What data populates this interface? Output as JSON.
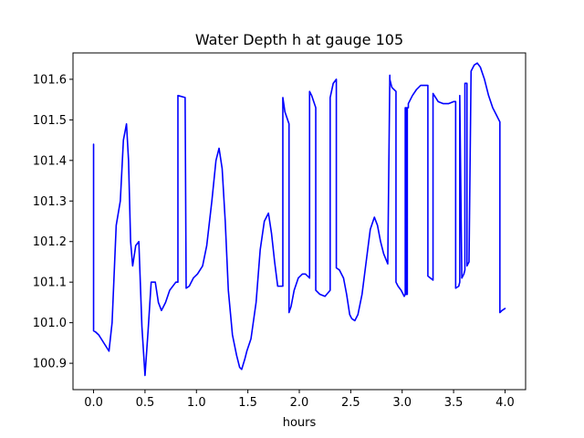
{
  "chart_data": {
    "type": "line",
    "title": "Water Depth h at gauge 105",
    "xlabel": "hours",
    "ylabel": "",
    "xlim": [
      -0.2,
      4.2
    ],
    "ylim": [
      100.835,
      101.665
    ],
    "xticks": [
      0.0,
      0.5,
      1.0,
      1.5,
      2.0,
      2.5,
      3.0,
      3.5,
      4.0
    ],
    "xtick_labels": [
      "0.0",
      "0.5",
      "1.0",
      "1.5",
      "2.0",
      "2.5",
      "3.0",
      "3.5",
      "4.0"
    ],
    "yticks": [
      100.9,
      101.0,
      101.1,
      101.2,
      101.3,
      101.4,
      101.5,
      101.6
    ],
    "ytick_labels": [
      "100.9",
      "101.0",
      "101.1",
      "101.2",
      "101.3",
      "101.4",
      "101.5",
      "101.6"
    ],
    "grid": false,
    "legend": "none",
    "series": [
      {
        "color": "#0000ff",
        "x": [
          0.0,
          0.0,
          0.02,
          0.05,
          0.1,
          0.15,
          0.18,
          0.22,
          0.26,
          0.29,
          0.32,
          0.34,
          0.36,
          0.38,
          0.41,
          0.44,
          0.47,
          0.5,
          0.53,
          0.56,
          0.6,
          0.63,
          0.66,
          0.7,
          0.74,
          0.8,
          0.82,
          0.82,
          0.89,
          0.9,
          0.93,
          0.97,
          1.01,
          1.06,
          1.1,
          1.15,
          1.19,
          1.22,
          1.25,
          1.28,
          1.31,
          1.35,
          1.39,
          1.42,
          1.44,
          1.47,
          1.49,
          1.53,
          1.58,
          1.62,
          1.66,
          1.7,
          1.73,
          1.76,
          1.79,
          1.82,
          1.84,
          1.84,
          1.86,
          1.9,
          1.9,
          1.92,
          1.95,
          1.99,
          2.03,
          2.06,
          2.1,
          2.1,
          2.12,
          2.16,
          2.16,
          2.2,
          2.25,
          2.3,
          2.3,
          2.33,
          2.36,
          2.36,
          2.39,
          2.43,
          2.46,
          2.49,
          2.51,
          2.54,
          2.57,
          2.61,
          2.65,
          2.69,
          2.73,
          2.76,
          2.79,
          2.82,
          2.86,
          2.88,
          2.88,
          2.9,
          2.94,
          2.94,
          2.96,
          2.99,
          3.02,
          3.03,
          3.03,
          3.04,
          3.04,
          3.05,
          3.05,
          3.06,
          3.06,
          3.1,
          3.14,
          3.18,
          3.22,
          3.25,
          3.25,
          3.3,
          3.3,
          3.35,
          3.4,
          3.45,
          3.5,
          3.52,
          3.52,
          3.55,
          3.56,
          3.56,
          3.58,
          3.6,
          3.61,
          3.61,
          3.63,
          3.63,
          3.65,
          3.67,
          3.7,
          3.73,
          3.76,
          3.8,
          3.84,
          3.88,
          3.92,
          3.95,
          3.95,
          3.97,
          4.0
        ],
        "y": [
          101.44,
          100.98,
          100.977,
          100.97,
          100.95,
          100.93,
          101.0,
          101.24,
          101.3,
          101.45,
          101.49,
          101.4,
          101.2,
          101.14,
          101.19,
          101.2,
          100.99,
          100.87,
          100.98,
          101.1,
          101.1,
          101.05,
          101.03,
          101.05,
          101.08,
          101.1,
          101.1,
          101.56,
          101.555,
          101.085,
          101.09,
          101.11,
          101.12,
          101.14,
          101.19,
          101.3,
          101.4,
          101.43,
          101.38,
          101.25,
          101.08,
          100.97,
          100.92,
          100.89,
          100.885,
          100.91,
          100.93,
          100.96,
          101.05,
          101.18,
          101.25,
          101.27,
          101.22,
          101.15,
          101.09,
          101.09,
          101.09,
          101.555,
          101.52,
          101.49,
          101.025,
          101.04,
          101.08,
          101.11,
          101.12,
          101.12,
          101.11,
          101.57,
          101.56,
          101.53,
          101.08,
          101.07,
          101.065,
          101.08,
          101.555,
          101.59,
          101.6,
          101.135,
          101.13,
          101.11,
          101.07,
          101.02,
          101.01,
          101.005,
          101.02,
          101.07,
          101.15,
          101.23,
          101.26,
          101.24,
          101.2,
          101.17,
          101.145,
          101.61,
          101.6,
          101.58,
          101.57,
          101.1,
          101.09,
          101.08,
          101.065,
          101.07,
          101.53,
          101.53,
          101.07,
          101.07,
          101.53,
          101.53,
          101.54,
          101.56,
          101.575,
          101.585,
          101.585,
          101.585,
          101.115,
          101.105,
          101.565,
          101.545,
          101.54,
          101.54,
          101.545,
          101.545,
          101.085,
          101.09,
          101.1,
          101.56,
          101.11,
          101.12,
          101.13,
          101.59,
          101.59,
          101.14,
          101.15,
          101.62,
          101.635,
          101.64,
          101.63,
          101.6,
          101.56,
          101.53,
          101.51,
          101.495,
          101.025,
          101.03,
          101.035
        ]
      }
    ]
  }
}
